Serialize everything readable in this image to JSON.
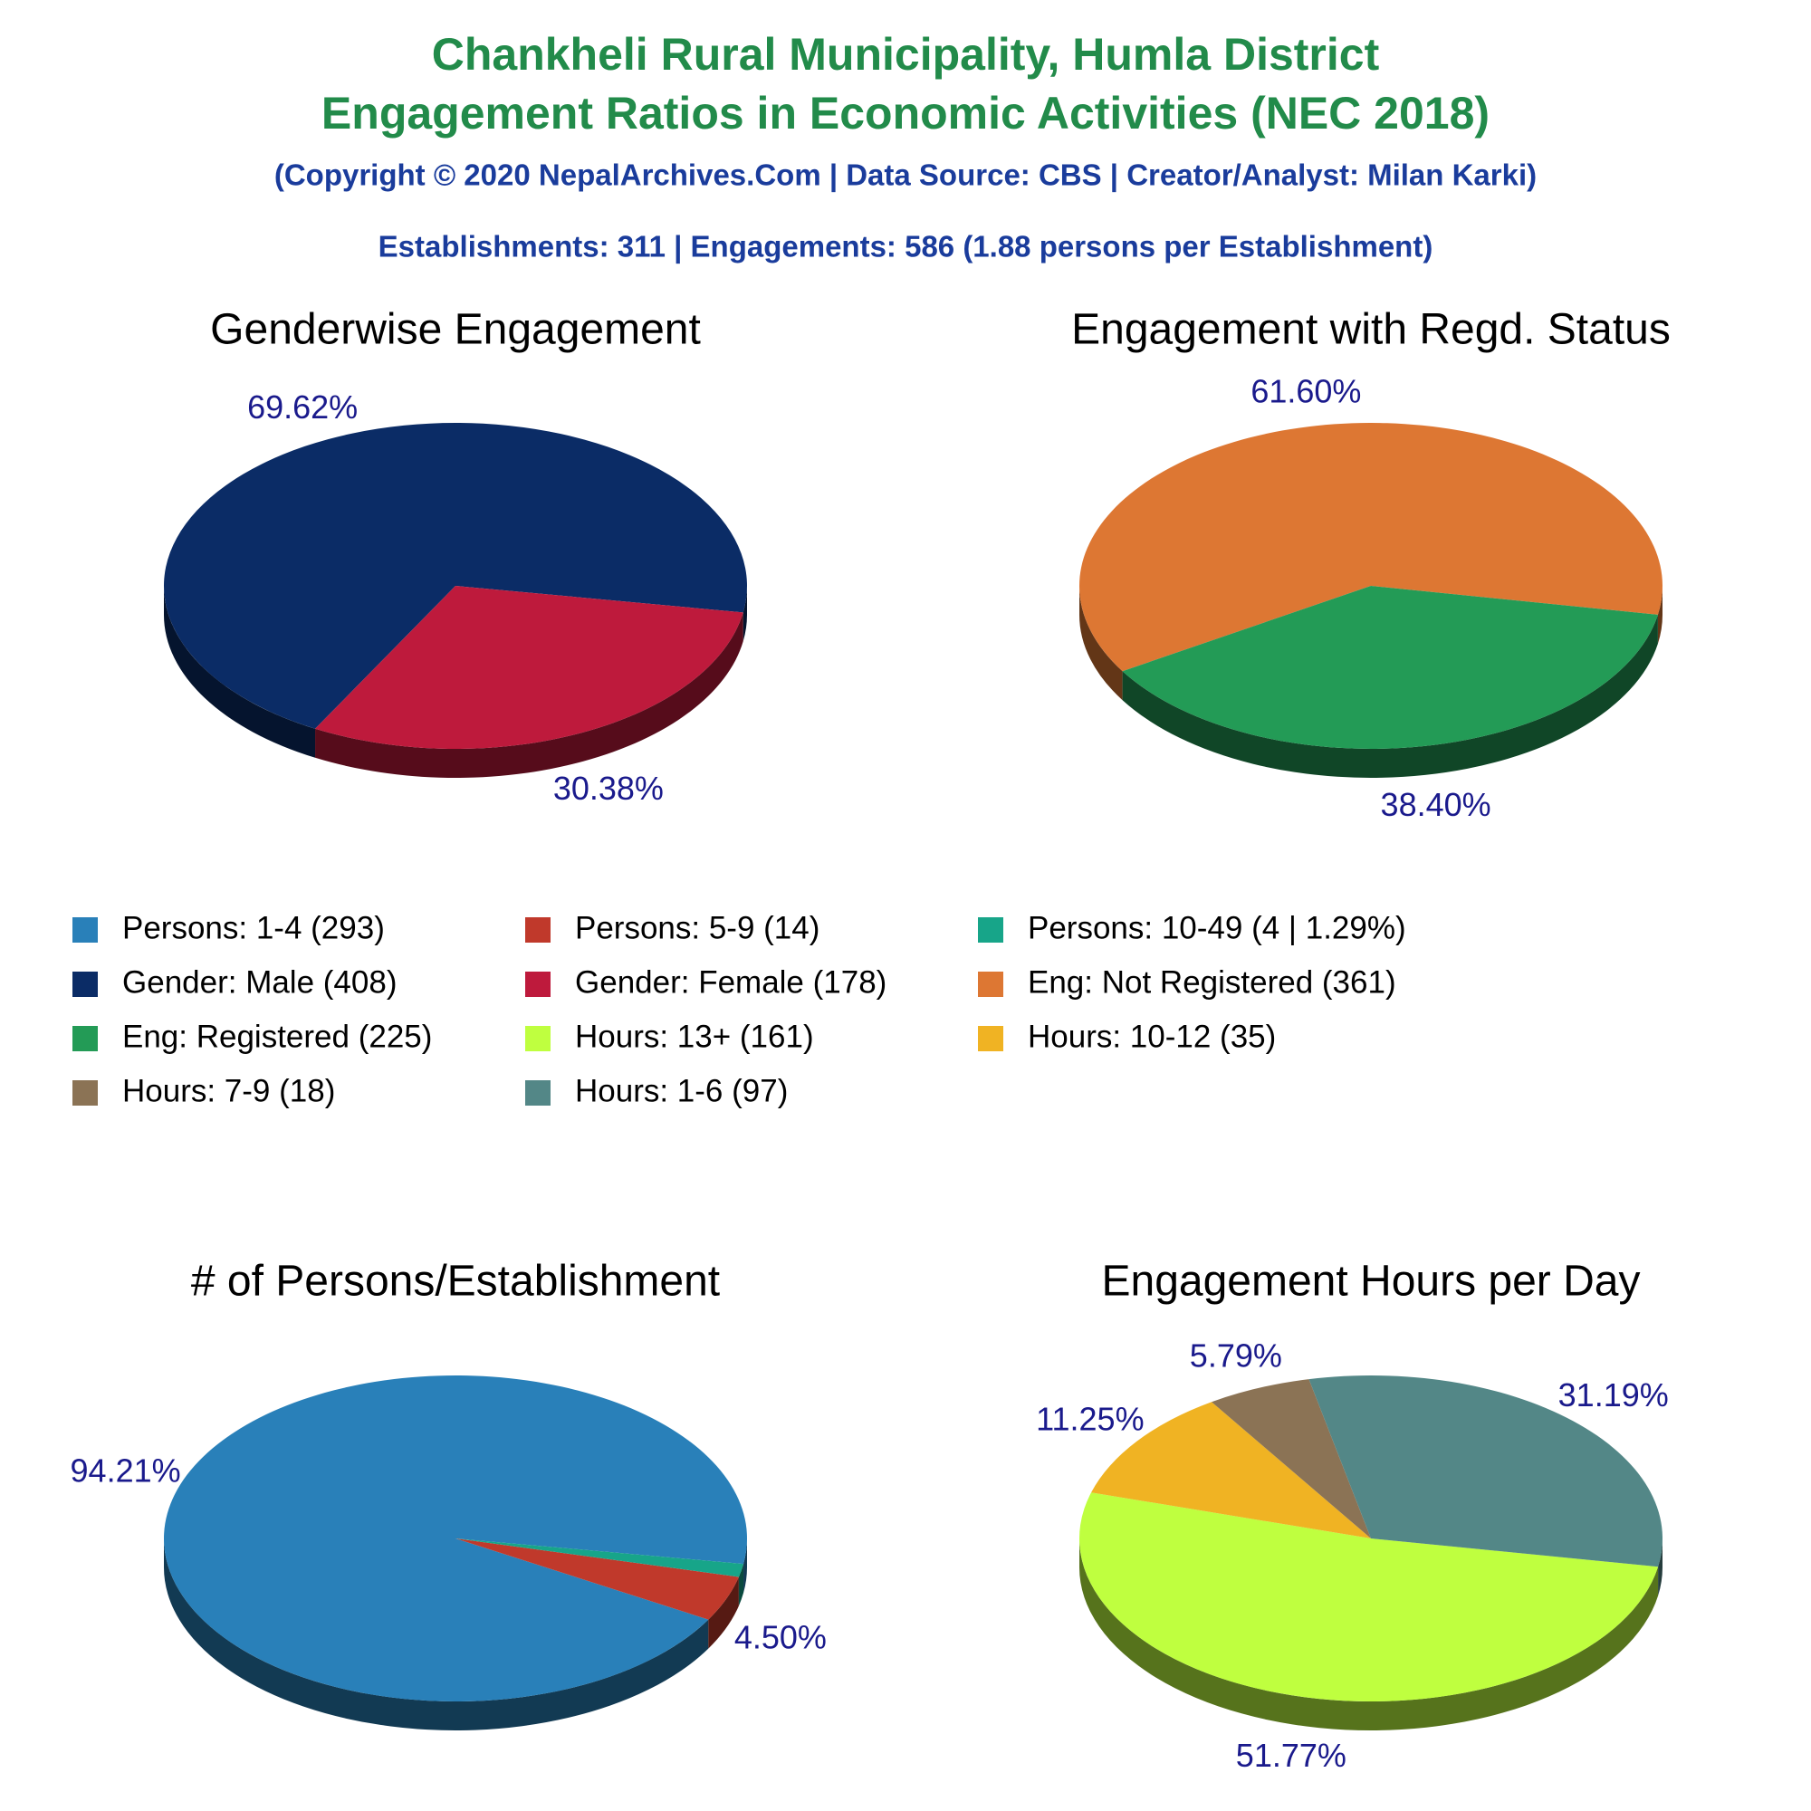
{
  "header": {
    "title_lines": [
      "Chankheli Rural Municipality, Humla District",
      "Engagement Ratios in Economic Activities (NEC 2018)"
    ],
    "copyright": "(Copyright © 2020 NepalArchives.Com | Data Source: CBS | Creator/Analyst: Milan Karki)",
    "summary": "Establishments: 311 | Engagements: 586 (1.88 persons per Establishment)"
  },
  "chart_data": [
    {
      "type": "pie",
      "title": "Genderwise Engagement",
      "values": [
        69.62,
        30.38
      ],
      "value_labels": [
        "69.62%",
        "30.38%"
      ],
      "colors": [
        "#0b2c66",
        "#be1a3c"
      ]
    },
    {
      "type": "pie",
      "title": "Engagement with Regd. Status",
      "values": [
        61.6,
        38.4
      ],
      "value_labels": [
        "61.60%",
        "38.40%"
      ],
      "colors": [
        "#dd7733",
        "#239b56"
      ]
    },
    {
      "type": "pie",
      "title": "# of Persons/Establishment",
      "values": [
        94.21,
        4.5,
        1.29
      ],
      "value_labels": [
        "94.21%",
        "4.50%",
        null
      ],
      "colors": [
        "#2980b9",
        "#c0392b",
        "#17a589"
      ]
    },
    {
      "type": "pie",
      "title": "Engagement Hours per Day",
      "values": [
        51.77,
        11.25,
        5.79,
        31.19
      ],
      "value_labels": [
        "51.77%",
        "11.25%",
        "5.79%",
        "31.19%"
      ],
      "colors": [
        "#bfff3f",
        "#f0b323",
        "#8b7355",
        "#538787"
      ]
    }
  ],
  "legend": {
    "items": [
      {
        "label": "Persons: 1-4 (293)",
        "color": "#2980b9"
      },
      {
        "label": "Persons: 5-9 (14)",
        "color": "#c0392b"
      },
      {
        "label": "Persons: 10-49 (4 | 1.29%)",
        "color": "#17a589"
      },
      {
        "label": "Gender: Male (408)",
        "color": "#0b2c66"
      },
      {
        "label": "Gender: Female (178)",
        "color": "#be1a3c"
      },
      {
        "label": "Eng: Not Registered (361)",
        "color": "#dd7733"
      },
      {
        "label": "Eng: Registered (225)",
        "color": "#239b56"
      },
      {
        "label": "Hours: 13+ (161)",
        "color": "#bfff3f"
      },
      {
        "label": "Hours: 10-12 (35)",
        "color": "#f0b323"
      },
      {
        "label": "Hours: 7-9 (18)",
        "color": "#8b7355"
      },
      {
        "label": "Hours: 1-6 (97)",
        "color": "#538787"
      }
    ]
  }
}
